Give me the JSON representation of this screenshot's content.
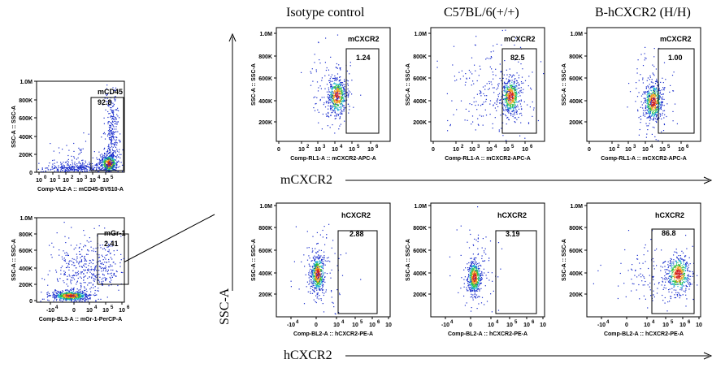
{
  "figure": {
    "column_headers": [
      "Isotype control",
      "C57BL/6(+/+)",
      "B-hCXCR2 (H/H)"
    ],
    "arrow_labels": {
      "mcxcr2": "mCXCR2",
      "hcxcr2": "hCXCR2",
      "ssc": "SSC-A"
    }
  },
  "chart_data": [
    {
      "type": "scatter",
      "id": "cd45",
      "gate_label": "mCD45",
      "gate_value": "92.8",
      "ylabel": "SSC-A :: SSC-A",
      "xlabel": "Comp-VL2-A :: mCD45-BV510-A",
      "x_ticks": [
        "10",
        "10",
        "10",
        "10",
        "10",
        "10"
      ],
      "x_exp": [
        "0",
        "1",
        "2",
        "3",
        "4",
        "5"
      ],
      "y_ticks": [
        "1.0M",
        "800K",
        "600K",
        "400K",
        "200K",
        "0"
      ],
      "ylim": [
        0,
        1000000
      ]
    },
    {
      "type": "scatter",
      "id": "gr1",
      "gate_label": "mGr-1",
      "gate_value": "2.41",
      "ylabel": "SSC-A :: SSC-A",
      "xlabel": "Comp-BL3-A :: mGr-1-PerCP-A",
      "x_ticks": [
        "-10",
        "0",
        "10",
        "10",
        "10"
      ],
      "x_exp": [
        "4",
        "",
        "4",
        "5",
        "6"
      ],
      "y_ticks": [
        "1.0M",
        "800K",
        "600K",
        "400K",
        "200K",
        "0"
      ],
      "ylim": [
        0,
        1000000
      ]
    },
    {
      "type": "scatter",
      "id": "m1",
      "gate_label": "mCXCR2",
      "gate_value": "1.24",
      "ylabel": "SSC-A :: SSC-A",
      "xlabel": "Comp-RL1-A :: mCXCR2-APC-A",
      "x_ticks": [
        "0",
        "10",
        "10",
        "10",
        "10",
        "10"
      ],
      "x_exp": [
        "",
        "2",
        "3",
        "4",
        "5",
        "6"
      ],
      "y_ticks": [
        "1.0M",
        "800K",
        "600K",
        "400K",
        "200K"
      ],
      "ylim": [
        0,
        1000000
      ]
    },
    {
      "type": "scatter",
      "id": "m2",
      "gate_label": "mCXCR2",
      "gate_value": "82.5",
      "ylabel": "SSC-A :: SSC-A",
      "xlabel": "Comp-RL1-A :: mCXCR2-APC-A",
      "x_ticks": [
        "0",
        "10",
        "10",
        "10",
        "10",
        "10"
      ],
      "x_exp": [
        "",
        "2",
        "3",
        "4",
        "5",
        "6"
      ],
      "y_ticks": [
        "1.0M",
        "800K",
        "600K",
        "400K",
        "200K"
      ],
      "ylim": [
        0,
        1000000
      ]
    },
    {
      "type": "scatter",
      "id": "m3",
      "gate_label": "mCXCR2",
      "gate_value": "1.00",
      "ylabel": "SSC-A :: SSC-A",
      "xlabel": "Comp-RL1-A :: mCXCR2-APC-A",
      "x_ticks": [
        "0",
        "10",
        "10",
        "10",
        "10",
        "10"
      ],
      "x_exp": [
        "",
        "2",
        "3",
        "4",
        "5",
        "6"
      ],
      "y_ticks": [
        "1.0M",
        "800K",
        "600K",
        "400K",
        "200K"
      ],
      "ylim": [
        0,
        1000000
      ]
    },
    {
      "type": "scatter",
      "id": "h1",
      "gate_label": "hCXCR2",
      "gate_value": "2.88",
      "ylabel": "SSC-A :: SSC-A",
      "xlabel": "Comp-BL2-A :: hCXCR2-PE-A",
      "x_ticks": [
        "-10",
        "0",
        "10",
        "10",
        "10",
        "10"
      ],
      "x_exp": [
        "4",
        "",
        "4",
        "5",
        "6",
        ""
      ],
      "y_ticks": [
        "1.0M",
        "800K",
        "600K",
        "400K",
        "200K"
      ],
      "ylim": [
        0,
        1000000
      ]
    },
    {
      "type": "scatter",
      "id": "h2",
      "gate_label": "hCXCR2",
      "gate_value": "3.19",
      "ylabel": "SSC-A :: SSC-A",
      "xlabel": "Comp-BL2-A :: hCXCR2-PE-A",
      "x_ticks": [
        "-10",
        "0",
        "10",
        "10",
        "10",
        "10"
      ],
      "x_exp": [
        "4",
        "",
        "4",
        "5",
        "6",
        ""
      ],
      "y_ticks": [
        "1.0M",
        "800K",
        "600K",
        "400K",
        "200K"
      ],
      "ylim": [
        0,
        1000000
      ]
    },
    {
      "type": "scatter",
      "id": "h3",
      "gate_label": "hCXCR2",
      "gate_value": "86.8",
      "ylabel": "SSC-A :: SSC-A",
      "xlabel": "Comp-BL2-A :: hCXCR2-PE-A",
      "x_ticks": [
        "-10",
        "0",
        "10",
        "10",
        "10",
        "10"
      ],
      "x_exp": [
        "4",
        "",
        "4",
        "5",
        "6",
        ""
      ],
      "y_ticks": [
        "1.0M",
        "800K",
        "600K",
        "400K",
        "200K"
      ],
      "ylim": [
        0,
        1000000
      ]
    }
  ]
}
